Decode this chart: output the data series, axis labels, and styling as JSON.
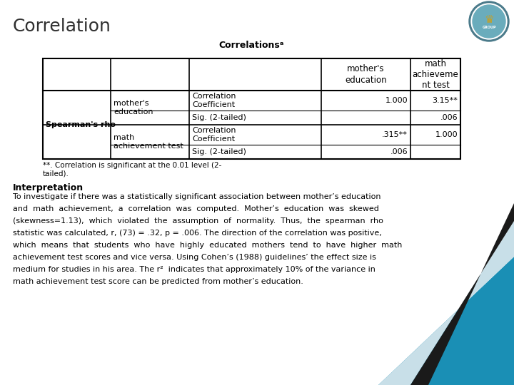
{
  "title": "Correlation",
  "table_title": "Correlationsᵃ",
  "bg_color": "#ffffff",
  "title_color": "#2F2F2F",
  "title_fontsize": 18,
  "footnote": "**. Correlation is significant at the 0.01 level (2-\ntailed).",
  "interpretation_title": "Interpretation",
  "interpretation_text_lines": [
    "To investigate if there was a statistically significant association between mother’s education",
    "and  math  achievement,  a  correlation  was  computed.  Mother’s  education  was  skewed",
    "(skewness=1.13),  which  violated  the  assumption  of  normality.  Thus,  the  spearman  rho",
    "statistic was calculated, r, (73) = .32, p = .006. The direction of the correlation was positive,",
    "which  means  that  students  who  have  highly  educated  mothers  tend  to  have  higher  math",
    "achievement test scores and vice versa. Using Cohen’s (1988) guidelines’ the effect size is",
    "medium for studies in his area. The r²  indicates that approximately 10% of the variance in",
    "math achievement test score can be predicted from mother’s education."
  ],
  "diagonal_colors": [
    "#1a8fb5",
    "#c8dfe8",
    "#1a1a1a"
  ],
  "logo_bg": "#e8e8e8"
}
